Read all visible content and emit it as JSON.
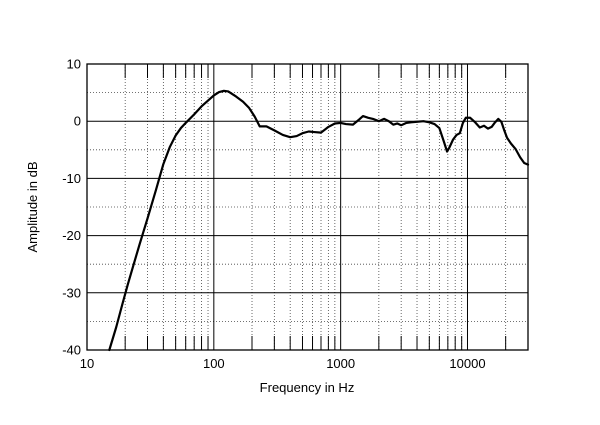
{
  "chart_data": {
    "type": "line",
    "title": "",
    "xlabel": "Frequency in Hz",
    "ylabel": "Amplitude in dB",
    "x_scale": "log",
    "xlim": [
      10,
      30000
    ],
    "ylim": [
      -40,
      10
    ],
    "grid": true,
    "x_tick_labels": [
      "10",
      "100",
      "1000",
      "10000"
    ],
    "y_tick_labels": [
      "10",
      "0",
      "-10",
      "-20",
      "-30",
      "-40"
    ],
    "series": [
      {
        "color": "#000000",
        "points": [
          [
            15,
            -40
          ],
          [
            17,
            -36
          ],
          [
            19,
            -32
          ],
          [
            21,
            -28.5
          ],
          [
            23,
            -25.5
          ],
          [
            26,
            -21.5
          ],
          [
            30,
            -17
          ],
          [
            35,
            -12
          ],
          [
            40,
            -7.5
          ],
          [
            45,
            -4.5
          ],
          [
            50,
            -2.5
          ],
          [
            55,
            -1.2
          ],
          [
            60,
            -0.3
          ],
          [
            70,
            1.2
          ],
          [
            80,
            2.6
          ],
          [
            90,
            3.6
          ],
          [
            100,
            4.5
          ],
          [
            110,
            5.1
          ],
          [
            120,
            5.3
          ],
          [
            130,
            5.2
          ],
          [
            150,
            4.3
          ],
          [
            170,
            3.4
          ],
          [
            190,
            2.3
          ],
          [
            210,
            0.8
          ],
          [
            230,
            -0.9
          ],
          [
            260,
            -0.9
          ],
          [
            300,
            -1.6
          ],
          [
            350,
            -2.4
          ],
          [
            400,
            -2.8
          ],
          [
            450,
            -2.6
          ],
          [
            500,
            -2.1
          ],
          [
            560,
            -1.8
          ],
          [
            620,
            -1.9
          ],
          [
            700,
            -2.0
          ],
          [
            800,
            -1.0
          ],
          [
            900,
            -0.4
          ],
          [
            1000,
            -0.3
          ],
          [
            1100,
            -0.5
          ],
          [
            1250,
            -0.6
          ],
          [
            1400,
            0.3
          ],
          [
            1500,
            0.9
          ],
          [
            1650,
            0.6
          ],
          [
            1800,
            0.4
          ],
          [
            2000,
            0.0
          ],
          [
            2200,
            0.4
          ],
          [
            2400,
            0.0
          ],
          [
            2600,
            -0.6
          ],
          [
            2800,
            -0.4
          ],
          [
            3000,
            -0.7
          ],
          [
            3300,
            -0.3
          ],
          [
            3600,
            -0.2
          ],
          [
            4000,
            -0.1
          ],
          [
            4500,
            0.0
          ],
          [
            5000,
            -0.2
          ],
          [
            5500,
            -0.5
          ],
          [
            6000,
            -1.2
          ],
          [
            6500,
            -3.5
          ],
          [
            6900,
            -5.3
          ],
          [
            7200,
            -4.6
          ],
          [
            7700,
            -3.2
          ],
          [
            8200,
            -2.4
          ],
          [
            8700,
            -2.1
          ],
          [
            9200,
            -0.3
          ],
          [
            9700,
            0.6
          ],
          [
            10500,
            0.6
          ],
          [
            11500,
            -0.2
          ],
          [
            12500,
            -1.1
          ],
          [
            13500,
            -0.8
          ],
          [
            14500,
            -1.3
          ],
          [
            15500,
            -1.0
          ],
          [
            16500,
            -0.2
          ],
          [
            17500,
            0.4
          ],
          [
            18500,
            -0.1
          ],
          [
            19500,
            -1.6
          ],
          [
            20500,
            -2.9
          ],
          [
            22000,
            -3.9
          ],
          [
            24000,
            -4.9
          ],
          [
            26000,
            -6.3
          ],
          [
            28000,
            -7.3
          ],
          [
            30000,
            -7.6
          ]
        ]
      }
    ]
  }
}
